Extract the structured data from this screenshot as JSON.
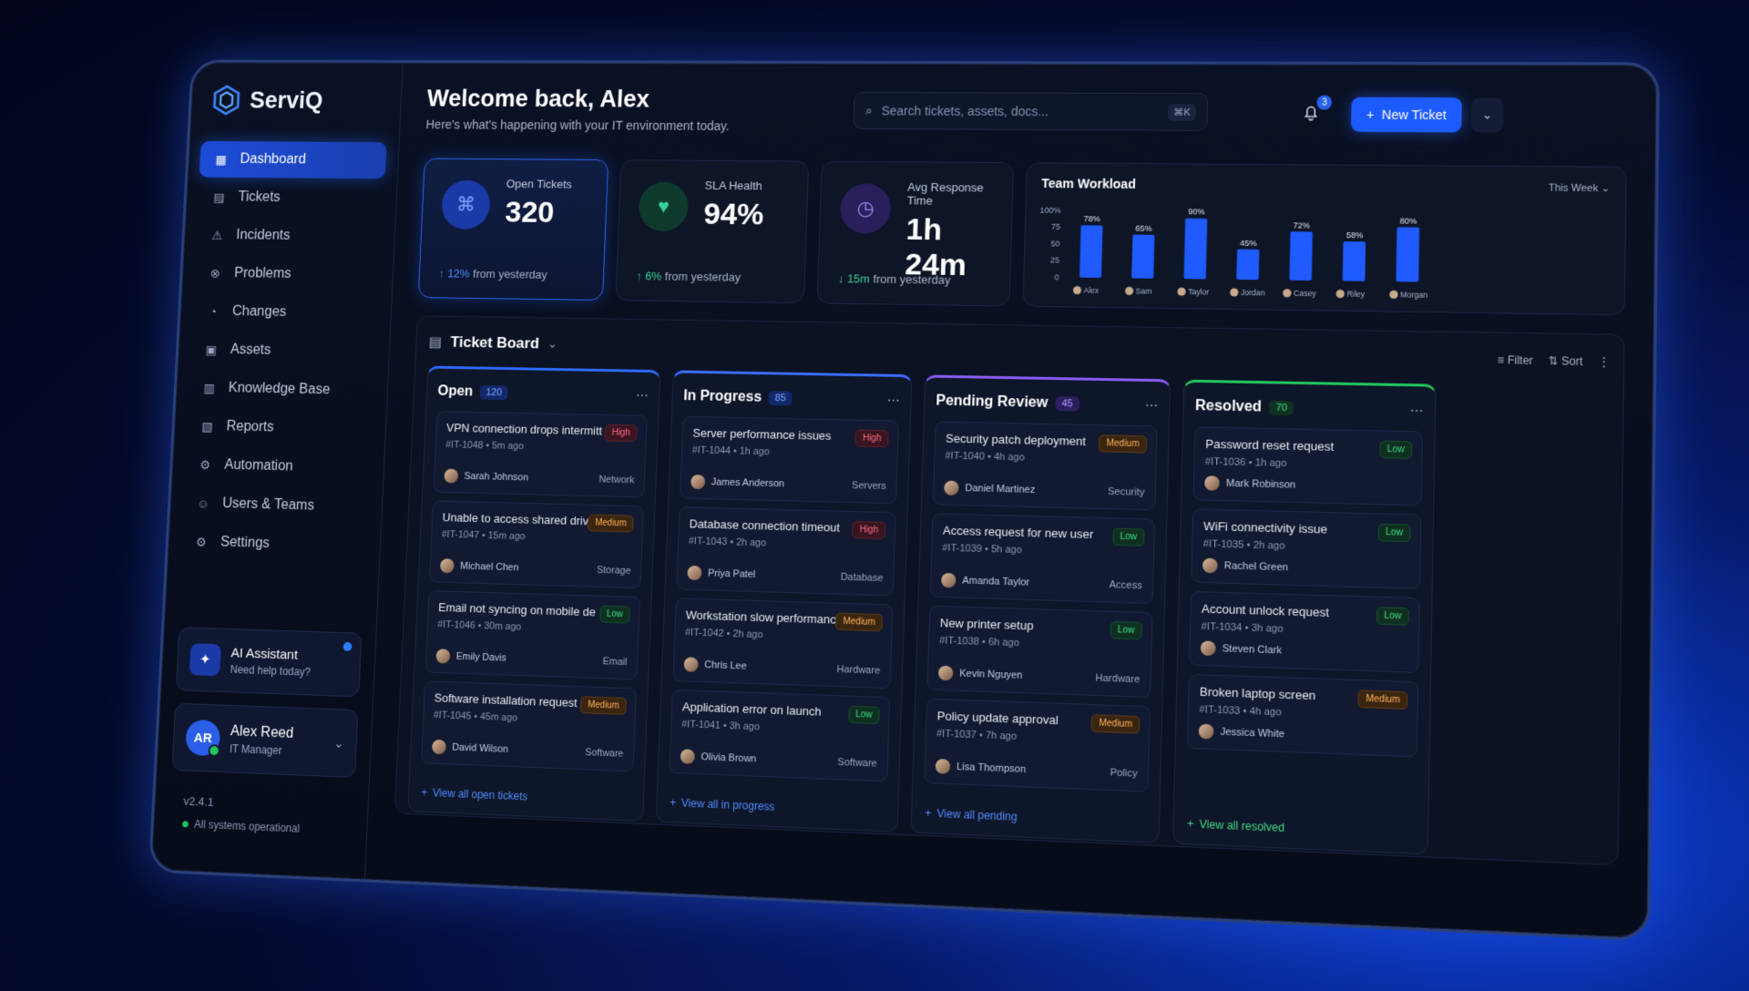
{
  "brand": {
    "name": "ServiQ"
  },
  "sidebar": {
    "items": [
      {
        "label": "Dashboard",
        "icon": "grid-icon",
        "glyph": "▦",
        "active": true
      },
      {
        "label": "Tickets",
        "icon": "ticket-icon",
        "glyph": "▤"
      },
      {
        "label": "Incidents",
        "icon": "alert-icon",
        "glyph": "⚠"
      },
      {
        "label": "Problems",
        "icon": "problem-icon",
        "glyph": "⊗"
      },
      {
        "label": "Changes",
        "icon": "changes-icon",
        "glyph": "◔"
      },
      {
        "label": "Assets",
        "icon": "assets-icon",
        "glyph": "▣"
      },
      {
        "label": "Knowledge Base",
        "icon": "book-icon",
        "glyph": "▥"
      },
      {
        "label": "Reports",
        "icon": "reports-icon",
        "glyph": "▧"
      },
      {
        "label": "Automation",
        "icon": "automation-icon",
        "glyph": "⚙"
      },
      {
        "label": "Users & Teams",
        "icon": "users-icon",
        "glyph": "☺"
      },
      {
        "label": "Settings",
        "icon": "gear-icon",
        "glyph": "⚙"
      }
    ],
    "ai": {
      "title": "AI Assistant",
      "subtitle": "Need help today?"
    },
    "user": {
      "initials": "AR",
      "name": "Alex Reed",
      "role": "IT Manager"
    },
    "version": "v2.4.1",
    "status": "All systems operational"
  },
  "header": {
    "title": "Welcome back, Alex",
    "subtitle": "Here's what's happening with your IT environment today.",
    "search_placeholder": "Search tickets, assets, docs...",
    "search_shortcut": "⌘K",
    "notifications": "3",
    "new_ticket": "New Ticket"
  },
  "stats": [
    {
      "label": "Open Tickets",
      "value": "320",
      "delta": "12%",
      "delta_text": "from yesterday",
      "arrow": "↑",
      "tone": "blue",
      "icon": "ticket-icon",
      "glyph": "⌘",
      "icon_bg": "#1a3aa8",
      "icon_color": "#7fa8ff"
    },
    {
      "label": "SLA Health",
      "value": "94%",
      "delta": "6%",
      "delta_text": "from yesterday",
      "arrow": "↑",
      "tone": "green",
      "icon": "heart-pulse-icon",
      "glyph": "♥",
      "icon_bg": "#0f3b2e",
      "icon_color": "#34d399"
    },
    {
      "label": "Avg Response Time",
      "value": "1h 24m",
      "delta": "15m",
      "delta_text": "from yesterday",
      "arrow": "↓",
      "tone": "green",
      "icon": "clock-icon",
      "glyph": "◷",
      "icon_bg": "#2a1f5a",
      "icon_color": "#a78bfa"
    }
  ],
  "workload": {
    "title": "Team Workload",
    "range": "This Week ⌄",
    "chart_data": {
      "type": "bar",
      "categories": [
        "Alex",
        "Sam",
        "Taylor",
        "Jordan",
        "Casey",
        "Riley",
        "Morgan"
      ],
      "values": [
        78,
        65,
        90,
        45,
        72,
        58,
        80
      ],
      "value_labels": [
        "78%",
        "65%",
        "90%",
        "45%",
        "72%",
        "58%",
        "80%"
      ],
      "yticks": [
        "0",
        "25",
        "50",
        "75",
        "100%"
      ],
      "ylim": [
        0,
        100
      ],
      "color": "#1f5bff"
    }
  },
  "board": {
    "title": "Ticket Board",
    "filter": "Filter",
    "sort": "Sort",
    "columns": [
      {
        "title": "Open",
        "count": "120",
        "accent": "#2e6bff",
        "count_bg": "#13296b",
        "count_color": "#7fa8ff",
        "link": "View all open tickets",
        "link_color": "#4f8cff",
        "cards": [
          {
            "title": "VPN connection drops intermittently",
            "id": "#IT-1048",
            "time": "5m ago",
            "priority": "High",
            "owner": "Sarah Johnson",
            "category": "Network"
          },
          {
            "title": "Unable to access shared drive",
            "id": "#IT-1047",
            "time": "15m ago",
            "priority": "Medium",
            "owner": "Michael Chen",
            "category": "Storage"
          },
          {
            "title": "Email not syncing on mobile device",
            "id": "#IT-1046",
            "time": "30m ago",
            "priority": "Low",
            "owner": "Emily Davis",
            "category": "Email"
          },
          {
            "title": "Software installation request",
            "id": "#IT-1045",
            "time": "45m ago",
            "priority": "Medium",
            "owner": "David Wilson",
            "category": "Software"
          }
        ]
      },
      {
        "title": "In Progress",
        "count": "85",
        "accent": "#3b6dff",
        "count_bg": "#13296b",
        "count_color": "#7fa8ff",
        "link": "View all in progress",
        "link_color": "#4f8cff",
        "cards": [
          {
            "title": "Server performance issues",
            "id": "#IT-1044",
            "time": "1h ago",
            "priority": "High",
            "owner": "James Anderson",
            "category": "Servers"
          },
          {
            "title": "Database connection timeout",
            "id": "#IT-1043",
            "time": "2h ago",
            "priority": "High",
            "owner": "Priya Patel",
            "category": "Database"
          },
          {
            "title": "Workstation slow performance",
            "id": "#IT-1042",
            "time": "2h ago",
            "priority": "Medium",
            "owner": "Chris Lee",
            "category": "Hardware"
          },
          {
            "title": "Application error on launch",
            "id": "#IT-1041",
            "time": "3h ago",
            "priority": "Low",
            "owner": "Olivia Brown",
            "category": "Software"
          }
        ]
      },
      {
        "title": "Pending Review",
        "count": "45",
        "accent": "#8b5cf6",
        "count_bg": "#2b1f5e",
        "count_color": "#b69bff",
        "link": "View all pending",
        "link_color": "#4f8cff",
        "cards": [
          {
            "title": "Security patch deployment",
            "id": "#IT-1040",
            "time": "4h ago",
            "priority": "Medium",
            "owner": "Daniel Martinez",
            "category": "Security"
          },
          {
            "title": "Access request for new user",
            "id": "#IT-1039",
            "time": "5h ago",
            "priority": "Low",
            "owner": "Amanda Taylor",
            "category": "Access"
          },
          {
            "title": "New printer setup",
            "id": "#IT-1038",
            "time": "6h ago",
            "priority": "Low",
            "owner": "Kevin Nguyen",
            "category": "Hardware"
          },
          {
            "title": "Policy update approval",
            "id": "#IT-1037",
            "time": "7h ago",
            "priority": "Medium",
            "owner": "Lisa Thompson",
            "category": "Policy"
          }
        ]
      },
      {
        "title": "Resolved",
        "count": "70",
        "accent": "#22c55e",
        "count_bg": "#0f3322",
        "count_color": "#3ddc84",
        "link": "View all resolved",
        "link_color": "#3ddc84",
        "cards": [
          {
            "title": "Password reset request",
            "id": "#IT-1036",
            "time": "1h ago",
            "priority": "Low",
            "owner": "Mark Robinson",
            "category": ""
          },
          {
            "title": "WiFi connectivity issue",
            "id": "#IT-1035",
            "time": "2h ago",
            "priority": "Low",
            "owner": "Rachel Green",
            "category": ""
          },
          {
            "title": "Account unlock request",
            "id": "#IT-1034",
            "time": "3h ago",
            "priority": "Low",
            "owner": "Steven Clark",
            "category": ""
          },
          {
            "title": "Broken laptop screen",
            "id": "#IT-1033",
            "time": "4h ago",
            "priority": "Medium",
            "owner": "Jessica White",
            "category": ""
          }
        ]
      }
    ]
  }
}
